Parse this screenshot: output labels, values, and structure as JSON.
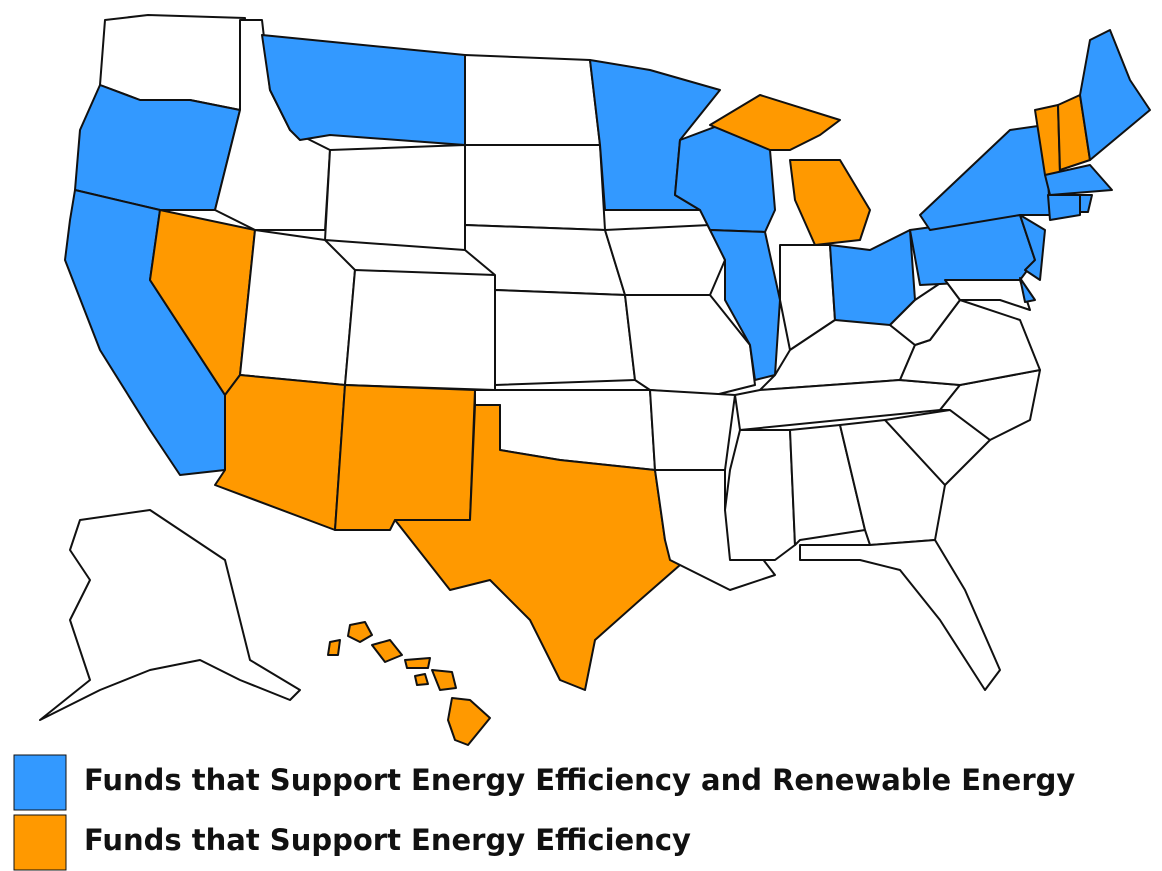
{
  "legend": [
    {
      "label": "Funds that Support Energy Efficiency and Renewable Energy",
      "color": "#3399ff"
    },
    {
      "label": "Funds that Support Energy Efficiency",
      "color": "#ff9900"
    }
  ]
}
